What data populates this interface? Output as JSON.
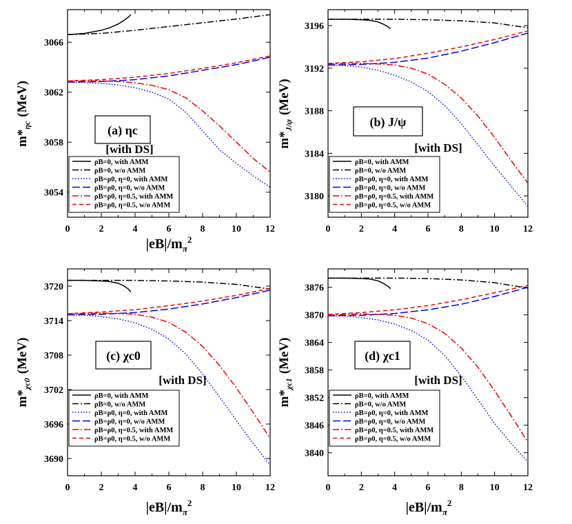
{
  "figure": {
    "xlabel_main": "|eB|/m",
    "xlabel_sub": "π",
    "xlabel_sup": "2",
    "ylabel_main": "m*",
    "colors": {
      "black": "#000000",
      "blue": "#0000ee",
      "red": "#ee0000"
    }
  },
  "chart_data": [
    {
      "type": "line",
      "panel_label": "(a) ηc",
      "ds_label": "[with DS]",
      "ylabel_sub": "ηc",
      "ylabel_unit": "(MeV)",
      "xlim": [
        0,
        12
      ],
      "ylim": [
        3052,
        3068.6
      ],
      "xticks": [
        0,
        2,
        4,
        6,
        8,
        10,
        12
      ],
      "yticks": [
        3054,
        3058,
        3062,
        3066
      ],
      "grid": false,
      "legend_position": "bottom-left",
      "series": [
        {
          "name": "ρB=0, with AMM",
          "color": "#000000",
          "dash": "solid",
          "x": [
            0,
            1,
            2,
            2.5,
            3,
            3.3,
            3.6,
            3.75
          ],
          "y": [
            3066.6,
            3066.7,
            3066.95,
            3067.15,
            3067.45,
            3067.7,
            3068.0,
            3068.2
          ]
        },
        {
          "name": "ρB=0, w/o AMM",
          "color": "#000000",
          "dash": "dashdot",
          "x": [
            0,
            2,
            4,
            6,
            8,
            10,
            12
          ],
          "y": [
            3066.6,
            3066.7,
            3066.95,
            3067.25,
            3067.55,
            3067.85,
            3068.2
          ]
        },
        {
          "name": "ρB=ρ0, η=0, with AMM",
          "color": "#0000ee",
          "dash": "dotted",
          "x": [
            0,
            1,
            2,
            3,
            4,
            5,
            6,
            7,
            8,
            9,
            10,
            11,
            12
          ],
          "y": [
            3062.8,
            3062.78,
            3062.7,
            3062.58,
            3062.35,
            3062.0,
            3061.45,
            3060.4,
            3058.9,
            3057.4,
            3056.3,
            3055.3,
            3054.4
          ]
        },
        {
          "name": "ρB=ρ0, η=0, w/o AMM",
          "color": "#0000ee",
          "dash": "longdash",
          "x": [
            0,
            2,
            4,
            6,
            8,
            10,
            12
          ],
          "y": [
            3062.8,
            3062.85,
            3063.0,
            3063.3,
            3063.75,
            3064.2,
            3064.8
          ]
        },
        {
          "name": "ρB=ρ0, η=0.5, with AMM",
          "color": "#ee0000",
          "dash": "dashdot",
          "x": [
            0,
            1,
            2,
            3,
            4,
            5,
            6,
            7,
            8,
            9,
            10,
            11,
            12
          ],
          "y": [
            3062.9,
            3062.9,
            3062.9,
            3062.85,
            3062.75,
            3062.55,
            3062.2,
            3061.55,
            3060.5,
            3059.3,
            3058.0,
            3056.7,
            3055.6
          ]
        },
        {
          "name": "ρB=ρ0, η=0.5, w/o AMM",
          "color": "#ee0000",
          "dash": "dash",
          "x": [
            0,
            2,
            4,
            6,
            8,
            10,
            12
          ],
          "y": [
            3062.9,
            3063.0,
            3063.2,
            3063.5,
            3063.9,
            3064.35,
            3064.9
          ]
        }
      ]
    },
    {
      "type": "line",
      "panel_label": "(b) J/ψ",
      "ds_label": "[with DS]",
      "ylabel_sub": "J/ψ",
      "ylabel_unit": "(MeV)",
      "xlim": [
        0,
        12
      ],
      "ylim": [
        3178,
        3197.5
      ],
      "xticks": [
        0,
        2,
        4,
        6,
        8,
        10,
        12
      ],
      "yticks": [
        3180,
        3184,
        3188,
        3192,
        3196
      ],
      "grid": false,
      "legend_position": "bottom-left",
      "series": [
        {
          "name": "ρB=0, with AMM",
          "color": "#000000",
          "dash": "solid",
          "x": [
            0,
            1,
            2,
            2.5,
            3,
            3.3,
            3.6,
            3.75
          ],
          "y": [
            3196.6,
            3196.6,
            3196.55,
            3196.5,
            3196.35,
            3196.15,
            3195.9,
            3195.7
          ]
        },
        {
          "name": "ρB=0, w/o AMM",
          "color": "#000000",
          "dash": "dashdot",
          "x": [
            0,
            2,
            4,
            6,
            8,
            10,
            12
          ],
          "y": [
            3196.6,
            3196.6,
            3196.6,
            3196.55,
            3196.45,
            3196.25,
            3195.8
          ]
        },
        {
          "name": "ρB=ρ0, η=0, with AMM",
          "color": "#0000ee",
          "dash": "dotted",
          "x": [
            0,
            1,
            2,
            3,
            4,
            5,
            6,
            7,
            8,
            9,
            10,
            11,
            12
          ],
          "y": [
            3192.3,
            3192.25,
            3192.1,
            3191.8,
            3191.35,
            3190.7,
            3189.8,
            3188.5,
            3186.8,
            3184.8,
            3182.8,
            3180.9,
            3179.0
          ]
        },
        {
          "name": "ρB=ρ0, η=0, w/o AMM",
          "color": "#0000ee",
          "dash": "longdash",
          "x": [
            0,
            2,
            4,
            6,
            8,
            10,
            12
          ],
          "y": [
            3192.3,
            3192.35,
            3192.55,
            3192.95,
            3193.6,
            3194.4,
            3195.3
          ]
        },
        {
          "name": "ρB=ρ0, η=0.5, with AMM",
          "color": "#ee0000",
          "dash": "dashdot",
          "x": [
            0,
            1,
            2,
            3,
            4,
            5,
            6,
            7,
            8,
            9,
            10,
            11,
            12
          ],
          "y": [
            3192.4,
            3192.45,
            3192.45,
            3192.4,
            3192.3,
            3192.0,
            3191.45,
            3190.5,
            3189.2,
            3187.5,
            3185.5,
            3183.3,
            3181.2
          ]
        },
        {
          "name": "ρB=ρ0, η=0.5, w/o AMM",
          "color": "#ee0000",
          "dash": "dash",
          "x": [
            0,
            2,
            4,
            6,
            8,
            10,
            12
          ],
          "y": [
            3192.45,
            3192.6,
            3192.9,
            3193.4,
            3194.0,
            3194.7,
            3195.5
          ]
        }
      ]
    },
    {
      "type": "line",
      "panel_label": "(c) χc0",
      "ds_label": "[with DS]",
      "ylabel_sub": "χc0",
      "ylabel_unit": "(MeV)",
      "xlim": [
        0,
        12
      ],
      "ylim": [
        3687,
        3723
      ],
      "xticks": [
        0,
        2,
        4,
        6,
        8,
        10,
        12
      ],
      "yticks": [
        3690,
        3696,
        3702,
        3708,
        3714,
        3720
      ],
      "grid": false,
      "legend_position": "bottom-left",
      "series": [
        {
          "name": "ρB=0, with AMM",
          "color": "#000000",
          "dash": "solid",
          "x": [
            0,
            1,
            2,
            2.5,
            3,
            3.3,
            3.6,
            3.75
          ],
          "y": [
            3721.0,
            3721.0,
            3720.9,
            3720.8,
            3720.5,
            3720.1,
            3719.5,
            3719.0
          ]
        },
        {
          "name": "ρB=0, w/o AMM",
          "color": "#000000",
          "dash": "dashdot",
          "x": [
            0,
            2,
            4,
            6,
            8,
            10,
            12
          ],
          "y": [
            3721.0,
            3721.0,
            3721.0,
            3720.9,
            3720.7,
            3720.3,
            3719.5
          ]
        },
        {
          "name": "ρB=ρ0, η=0, with AMM",
          "color": "#0000ee",
          "dash": "dotted",
          "x": [
            0,
            1,
            2,
            3,
            4,
            5,
            6,
            7,
            8,
            9,
            10,
            11,
            12
          ],
          "y": [
            3715.0,
            3714.95,
            3714.7,
            3714.3,
            3713.6,
            3712.5,
            3710.8,
            3708.2,
            3704.7,
            3700.7,
            3696.6,
            3692.6,
            3688.8
          ]
        },
        {
          "name": "ρB=ρ0, η=0, w/o AMM",
          "color": "#0000ee",
          "dash": "longdash",
          "x": [
            0,
            2,
            4,
            6,
            8,
            10,
            12
          ],
          "y": [
            3715.0,
            3715.1,
            3715.4,
            3716.0,
            3716.9,
            3718.0,
            3719.3
          ]
        },
        {
          "name": "ρB=ρ0, η=0.5, with AMM",
          "color": "#ee0000",
          "dash": "dashdot",
          "x": [
            0,
            1,
            2,
            3,
            4,
            5,
            6,
            7,
            8,
            9,
            10,
            11,
            12
          ],
          "y": [
            3715.2,
            3715.25,
            3715.3,
            3715.25,
            3715.1,
            3714.6,
            3713.7,
            3712.0,
            3709.5,
            3706.2,
            3702.3,
            3698.0,
            3693.5
          ]
        },
        {
          "name": "ρB=ρ0, η=0.5, w/o AMM",
          "color": "#ee0000",
          "dash": "dash",
          "x": [
            0,
            2,
            4,
            6,
            8,
            10,
            12
          ],
          "y": [
            3715.2,
            3715.5,
            3715.9,
            3716.6,
            3717.4,
            3718.4,
            3719.6
          ]
        }
      ]
    },
    {
      "type": "line",
      "panel_label": "(d) χc1",
      "ds_label": "[with DS]",
      "ylabel_sub": "χc1",
      "ylabel_unit": "(MeV)",
      "xlim": [
        0,
        12
      ],
      "ylim": [
        3835,
        3880
      ],
      "xticks": [
        0,
        2,
        4,
        6,
        8,
        10,
        12
      ],
      "yticks": [
        3840,
        3846,
        3852,
        3858,
        3864,
        3870,
        3876
      ],
      "grid": false,
      "legend_position": "bottom-left",
      "series": [
        {
          "name": "ρB=0, with AMM",
          "color": "#000000",
          "dash": "solid",
          "x": [
            0,
            1,
            2,
            2.5,
            3,
            3.3,
            3.6,
            3.75
          ],
          "y": [
            3878.0,
            3878.0,
            3877.9,
            3877.8,
            3877.4,
            3876.9,
            3876.2,
            3875.7
          ]
        },
        {
          "name": "ρB=0, w/o AMM",
          "color": "#000000",
          "dash": "dashdot",
          "x": [
            0,
            2,
            4,
            6,
            8,
            10,
            12
          ],
          "y": [
            3878.0,
            3878.0,
            3878.0,
            3877.9,
            3877.6,
            3877.0,
            3875.8
          ]
        },
        {
          "name": "ρB=ρ0, η=0, with AMM",
          "color": "#0000ee",
          "dash": "dotted",
          "x": [
            0,
            1,
            2,
            3,
            4,
            5,
            6,
            7,
            8,
            9,
            10,
            11,
            12
          ],
          "y": [
            3869.8,
            3869.75,
            3869.4,
            3868.9,
            3868.0,
            3866.6,
            3864.5,
            3861.2,
            3856.7,
            3851.6,
            3846.4,
            3842.0,
            3838.0
          ]
        },
        {
          "name": "ρB=ρ0, η=0, w/o AMM",
          "color": "#0000ee",
          "dash": "longdash",
          "x": [
            0,
            2,
            4,
            6,
            8,
            10,
            12
          ],
          "y": [
            3869.8,
            3869.9,
            3870.3,
            3871.1,
            3872.3,
            3874.0,
            3876.0
          ]
        },
        {
          "name": "ρB=ρ0, η=0.5, with AMM",
          "color": "#ee0000",
          "dash": "dashdot",
          "x": [
            0,
            1,
            2,
            3,
            4,
            5,
            6,
            7,
            8,
            9,
            10,
            11,
            12
          ],
          "y": [
            3870.0,
            3870.1,
            3870.2,
            3870.1,
            3869.9,
            3869.3,
            3868.1,
            3866.0,
            3862.8,
            3858.6,
            3853.5,
            3848.0,
            3842.3
          ]
        },
        {
          "name": "ρB=ρ0, η=0.5, w/o AMM",
          "color": "#ee0000",
          "dash": "dash",
          "x": [
            0,
            2,
            4,
            6,
            8,
            10,
            12
          ],
          "y": [
            3870.1,
            3870.5,
            3871.1,
            3872.0,
            3873.3,
            3874.8,
            3876.4
          ]
        }
      ]
    }
  ]
}
